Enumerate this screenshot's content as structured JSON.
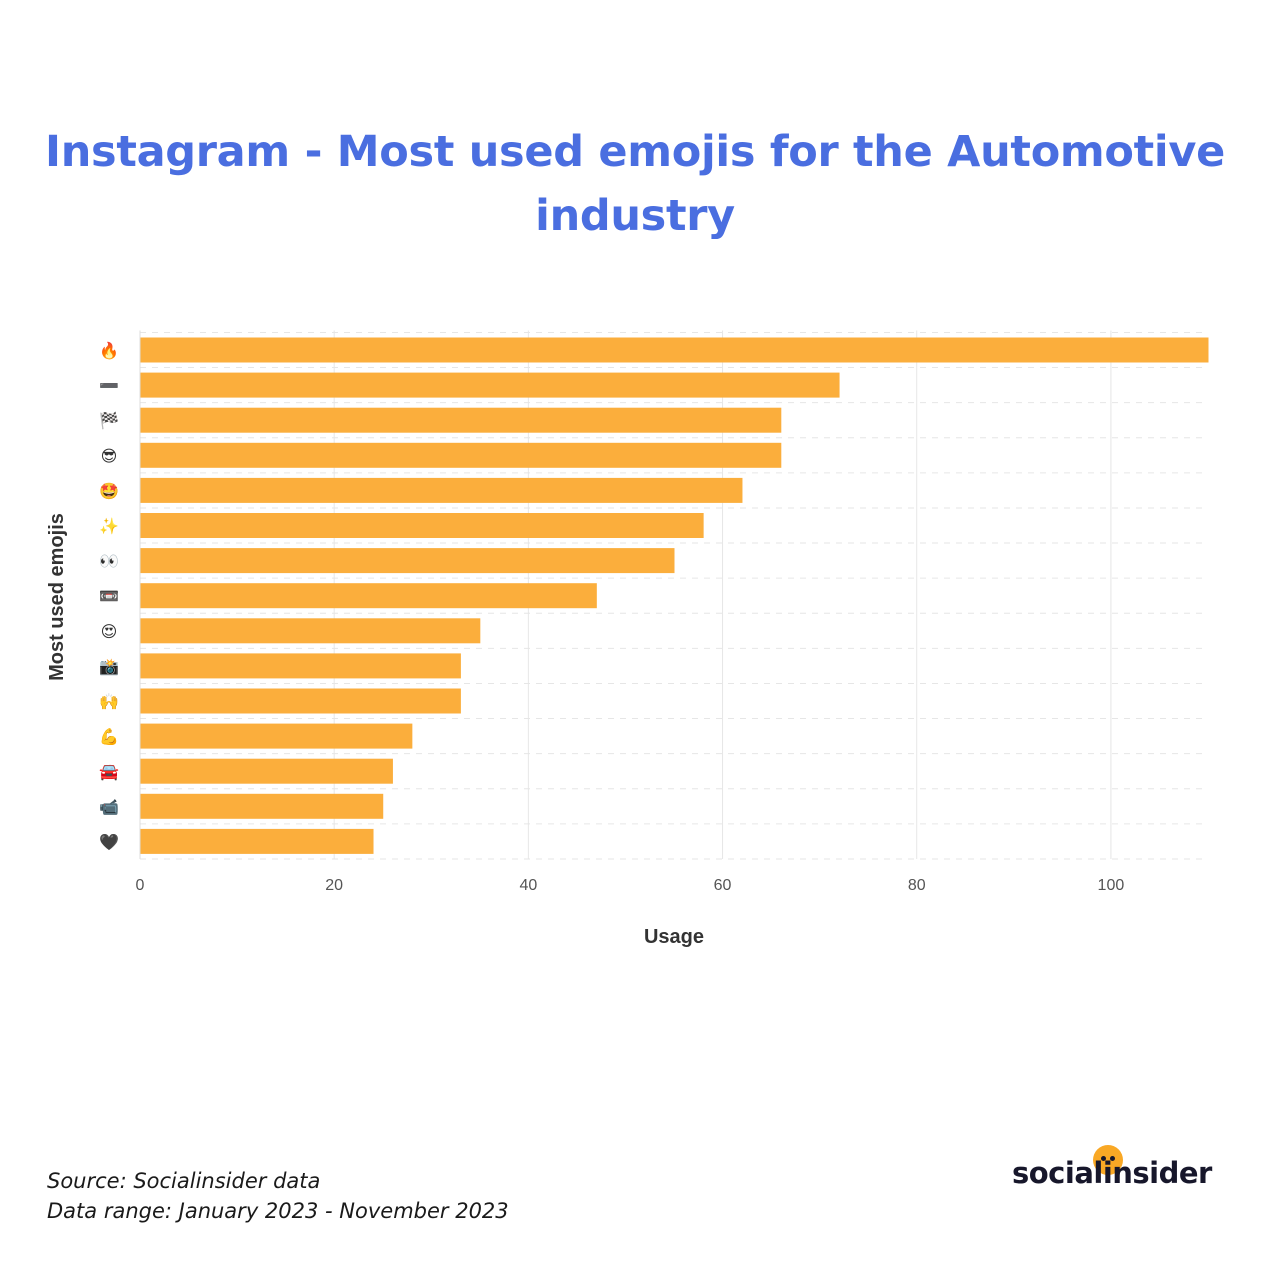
{
  "page": {
    "title_line1": "Instagram - Most used emojis for the Automotive",
    "title_line2": "industry",
    "source": "Source: Socialinsider data",
    "data_range": "Data range: January 2023 - November 2023",
    "logo_text": "socialinsider"
  },
  "colors": {
    "title": "#4a6ee0",
    "bar": "#fbae3c",
    "grid": "#e6e6e6",
    "axis_text": "#555555",
    "axis_title": "#333333",
    "logo_dot": "#f9a825"
  },
  "chart_data": {
    "type": "bar",
    "orientation": "horizontal",
    "title": "Instagram - Most used emojis for the Automotive industry",
    "xlabel": "Usage",
    "ylabel": "Most used emojis",
    "xlim": [
      0,
      110
    ],
    "xticks": [
      0,
      20,
      40,
      60,
      80,
      100
    ],
    "grid": true,
    "categories": [
      "🔥",
      "➖",
      "🏁",
      "😎",
      "🤩",
      "✨",
      "👀",
      "📼",
      "😍",
      "📸",
      "🙌",
      "💪",
      "🚘",
      "📹",
      "🖤"
    ],
    "category_icons": [
      "fire-emoji",
      "minus-emoji",
      "checkered-flag-emoji",
      "sunglasses-face-emoji",
      "star-struck-emoji",
      "sparkles-emoji",
      "eyes-emoji",
      "videocassette-emoji",
      "heart-eyes-emoji",
      "camera-flash-emoji",
      "raising-hands-emoji",
      "flexed-biceps-emoji",
      "oncoming-car-emoji",
      "video-camera-emoji",
      "black-heart-emoji"
    ],
    "values": [
      110,
      72,
      66,
      66,
      62,
      58,
      55,
      47,
      35,
      33,
      33,
      28,
      26,
      25,
      24
    ]
  }
}
